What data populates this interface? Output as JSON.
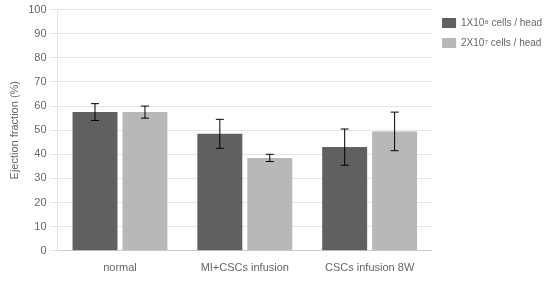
{
  "chart_data": {
    "type": "bar",
    "categories": [
      "normal",
      "MI+CSCs infusion",
      "CSCs infusion 8W"
    ],
    "series": [
      {
        "name": "1X10⁸ cells / head",
        "color": "#606060",
        "values": [
          57.5,
          48.5,
          43.0
        ],
        "errors": [
          3.5,
          6.0,
          7.5
        ]
      },
      {
        "name": "2X10⁷ cells / head",
        "color": "#b8b8b8",
        "values": [
          57.5,
          38.5,
          49.5
        ],
        "errors": [
          2.5,
          1.5,
          8.0
        ]
      }
    ],
    "ylabel": "Ejection fraction (%)",
    "ylim": [
      0,
      100
    ],
    "yticks": [
      0,
      10,
      20,
      30,
      40,
      50,
      60,
      70,
      80,
      90,
      100
    ],
    "grid": true,
    "legend": "right"
  }
}
